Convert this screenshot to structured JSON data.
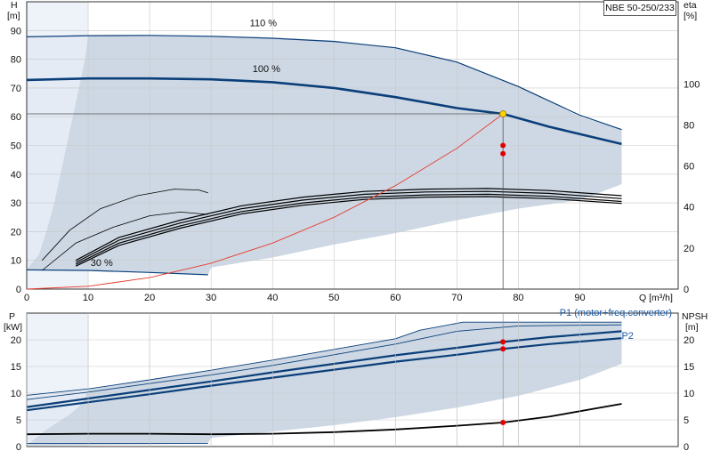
{
  "model": "NBE 50-250/233",
  "top_labels": {
    "h": "H",
    "h_unit": "[m]",
    "eta": "eta",
    "eta_unit": "[%]",
    "q": "Q [m³/h]"
  },
  "bottom_labels": {
    "p": "P",
    "p_unit": "[kW]",
    "npsh": "NPSH",
    "npsh_unit": "[m]"
  },
  "chart_data": [
    {
      "type": "line",
      "id": "head-efficiency",
      "xlabel": "Q [m³/h]",
      "ylabel": "H [m]",
      "y2label": "eta [%]",
      "xlim": [
        0,
        100
      ],
      "ylim": [
        0,
        100
      ],
      "y2lim": [
        0,
        140
      ],
      "x_ticks": [
        0,
        10,
        20,
        30,
        40,
        50,
        60,
        70,
        80,
        90
      ],
      "y_ticks": [
        0,
        10,
        20,
        30,
        40,
        50,
        60,
        70,
        80,
        90
      ],
      "y2_ticks": [
        0,
        20,
        40,
        60,
        80,
        100
      ],
      "grid": true,
      "annotations": [
        "110 %",
        "100 %",
        "30 %"
      ],
      "operating_point": {
        "q": 77.5,
        "h": 61,
        "eta_values": [
          70,
          66
        ]
      },
      "envelope": {
        "upper": [
          [
            0,
            88
          ],
          [
            10,
            88.4
          ],
          [
            20,
            88.5
          ],
          [
            30,
            88.2
          ],
          [
            40,
            87.5
          ],
          [
            50,
            86.5
          ],
          [
            60,
            84
          ],
          [
            70,
            79
          ],
          [
            80,
            70.5
          ],
          [
            90,
            60
          ],
          [
            96.8,
            55.5
          ]
        ],
        "lower": [
          [
            96.8,
            36.5
          ],
          [
            90,
            31
          ],
          [
            80,
            28
          ],
          [
            70,
            24
          ],
          [
            60,
            19.5
          ],
          [
            50,
            15.5
          ],
          [
            40,
            11
          ],
          [
            30,
            7.5
          ],
          [
            29.5,
            5
          ],
          [
            20,
            5.8
          ],
          [
            10,
            6.5
          ],
          [
            0,
            6.8
          ]
        ],
        "left_edge": [
          [
            10,
            88.4
          ],
          [
            9.5,
            80
          ],
          [
            8.5,
            70
          ],
          [
            7.5,
            60
          ],
          [
            6.5,
            50
          ],
          [
            5.5,
            40
          ],
          [
            4.5,
            30
          ],
          [
            3.2,
            20
          ],
          [
            2,
            12
          ],
          [
            0,
            6.8
          ]
        ]
      },
      "series": [
        {
          "kind": "head",
          "color": "#0b3f7a",
          "width": 2.6,
          "points": [
            [
              0,
              72.8
            ],
            [
              10,
              73.3
            ],
            [
              20,
              73.3
            ],
            [
              30,
              73
            ],
            [
              40,
              72
            ],
            [
              50,
              70
            ],
            [
              60,
              66.8
            ],
            [
              70,
              63
            ],
            [
              77.5,
              61
            ],
            [
              85,
              56.5
            ],
            [
              96.8,
              50.5
            ]
          ]
        },
        {
          "kind": "head",
          "color": "#0b3f7a",
          "width": 1.2,
          "points": [
            [
              0,
              87.8
            ],
            [
              10,
              88.2
            ],
            [
              20,
              88.3
            ],
            [
              30,
              88
            ],
            [
              40,
              87.3
            ],
            [
              50,
              86.2
            ],
            [
              60,
              84
            ],
            [
              70,
              79
            ],
            [
              80,
              70.5
            ],
            [
              90,
              60.5
            ],
            [
              96.8,
              55.5
            ]
          ]
        },
        {
          "kind": "head",
          "color": "#0b3f7a",
          "width": 1.2,
          "points": [
            [
              0,
              6.7
            ],
            [
              10,
              6.5
            ],
            [
              20,
              5.8
            ],
            [
              29.5,
              5
            ]
          ]
        },
        {
          "kind": "efficiency",
          "color": "#000000",
          "width": 1.2,
          "points": [
            [
              8,
              10
            ],
            [
              15,
              18
            ],
            [
              25,
              24
            ],
            [
              35,
              29
            ],
            [
              45,
              32
            ],
            [
              55,
              34
            ],
            [
              65,
              34.8
            ],
            [
              75,
              35
            ],
            [
              85,
              34.3
            ],
            [
              96.8,
              32.5
            ]
          ]
        },
        {
          "kind": "efficiency",
          "color": "#000000",
          "width": 1.2,
          "points": [
            [
              8,
              9.3
            ],
            [
              15,
              17
            ],
            [
              25,
              23
            ],
            [
              35,
              28
            ],
            [
              45,
              31
            ],
            [
              55,
              33
            ],
            [
              65,
              33.8
            ],
            [
              75,
              34
            ],
            [
              85,
              33.3
            ],
            [
              96.8,
              31.5
            ]
          ]
        },
        {
          "kind": "efficiency",
          "color": "#000000",
          "width": 1.2,
          "points": [
            [
              8,
              8.6
            ],
            [
              15,
              16
            ],
            [
              25,
              22
            ],
            [
              35,
              27
            ],
            [
              45,
              30
            ],
            [
              55,
              32
            ],
            [
              65,
              32.8
            ],
            [
              75,
              33
            ],
            [
              85,
              32.3
            ],
            [
              96.8,
              30.5
            ]
          ]
        },
        {
          "kind": "efficiency",
          "color": "#000000",
          "width": 1.2,
          "points": [
            [
              8,
              8
            ],
            [
              15,
              15.2
            ],
            [
              25,
              21.2
            ],
            [
              35,
              26.2
            ],
            [
              45,
              29.2
            ],
            [
              55,
              31.2
            ],
            [
              65,
              32
            ],
            [
              75,
              32.2
            ],
            [
              85,
              31.5
            ],
            [
              96.8,
              29.8
            ]
          ]
        },
        {
          "kind": "efficiency",
          "color": "#000000",
          "width": 0.8,
          "points": [
            [
              2.5,
              6.5
            ],
            [
              8,
              16
            ],
            [
              14,
              21.5
            ],
            [
              20,
              25.5
            ],
            [
              25,
              26.8
            ],
            [
              29.5,
              26
            ]
          ]
        },
        {
          "kind": "efficiency",
          "color": "#000000",
          "width": 0.8,
          "points": [
            [
              2.5,
              10
            ],
            [
              7,
              20.5
            ],
            [
              12,
              28
            ],
            [
              18,
              32.5
            ],
            [
              24,
              34.8
            ],
            [
              28,
              34.5
            ],
            [
              29.5,
              33.5
            ]
          ]
        },
        {
          "kind": "system",
          "color": "#e83a2c",
          "width": 0.9,
          "points": [
            [
              0,
              0
            ],
            [
              10,
              1
            ],
            [
              20,
              4
            ],
            [
              30,
              9
            ],
            [
              40,
              16
            ],
            [
              50,
              25
            ],
            [
              60,
              36
            ],
            [
              70,
              49
            ],
            [
              77.5,
              61
            ]
          ]
        }
      ]
    },
    {
      "type": "line",
      "id": "power-npsh",
      "ylabel": "P [kW]",
      "y2label": "NPSH [m]",
      "xlim": [
        0,
        100
      ],
      "ylim": [
        0,
        25
      ],
      "y_ticks": [
        0,
        5,
        10,
        15,
        20
      ],
      "y2_ticks": [
        0,
        5,
        10,
        15,
        20
      ],
      "grid": true,
      "legend": [
        "P1 (motor+freq.converter)",
        "P2"
      ],
      "operating_point": {
        "q": 77.5,
        "p1": 19.6,
        "p2": 18.3,
        "npsh": 4.5
      },
      "envelope": {
        "upper": [
          [
            0,
            9.6
          ],
          [
            10,
            10.8
          ],
          [
            20,
            12.5
          ],
          [
            30,
            14.3
          ],
          [
            40,
            16.2
          ],
          [
            50,
            18.2
          ],
          [
            60,
            20.2
          ],
          [
            64,
            21.8
          ],
          [
            71,
            23.3
          ],
          [
            80,
            23.3
          ],
          [
            96.8,
            23.3
          ]
        ],
        "lower": [
          [
            96.8,
            15.5
          ],
          [
            90,
            12.5
          ],
          [
            80,
            9.5
          ],
          [
            70,
            7.3
          ],
          [
            60,
            5.5
          ],
          [
            50,
            4
          ],
          [
            40,
            2.8
          ],
          [
            30,
            1.6
          ],
          [
            29.5,
            0.6
          ],
          [
            20,
            0.4
          ],
          [
            10,
            0.3
          ],
          [
            0,
            0.2
          ]
        ],
        "left_edge": [
          [
            10,
            10.8
          ],
          [
            9.5,
            9
          ],
          [
            8.5,
            7.5
          ],
          [
            7,
            6
          ],
          [
            5,
            4.5
          ],
          [
            3,
            3
          ],
          [
            0,
            0.2
          ]
        ]
      },
      "series": [
        {
          "name": "P1 (motor+freq.converter)",
          "color": "#0b3f7a",
          "width": 2.2,
          "points": [
            [
              0,
              7.4
            ],
            [
              10,
              9
            ],
            [
              20,
              10.6
            ],
            [
              30,
              12.2
            ],
            [
              40,
              13.9
            ],
            [
              50,
              15.5
            ],
            [
              60,
              17.1
            ],
            [
              70,
              18.5
            ],
            [
              77.5,
              19.6
            ],
            [
              85,
              20.5
            ],
            [
              96.8,
              21.6
            ]
          ]
        },
        {
          "name": "P2",
          "color": "#0b3f7a",
          "width": 2.2,
          "points": [
            [
              0,
              6.8
            ],
            [
              10,
              8.3
            ],
            [
              20,
              9.8
            ],
            [
              30,
              11.4
            ],
            [
              40,
              12.9
            ],
            [
              50,
              14.4
            ],
            [
              60,
              15.9
            ],
            [
              70,
              17.2
            ],
            [
              77.5,
              18.3
            ],
            [
              85,
              19.2
            ],
            [
              96.8,
              20.3
            ]
          ]
        },
        {
          "kind": "thin",
          "color": "#0b3f7a",
          "width": 0.9,
          "points": [
            [
              0,
              9.6
            ],
            [
              10,
              10.8
            ],
            [
              20,
              12.5
            ],
            [
              30,
              14.3
            ],
            [
              40,
              16.2
            ],
            [
              50,
              18.2
            ],
            [
              60,
              20.2
            ],
            [
              64,
              21.8
            ],
            [
              71,
              23.3
            ],
            [
              96.8,
              23.3
            ]
          ]
        },
        {
          "kind": "thin",
          "color": "#0b3f7a",
          "width": 0.9,
          "points": [
            [
              0,
              8.8
            ],
            [
              10,
              10.2
            ],
            [
              20,
              11.8
            ],
            [
              30,
              13.4
            ],
            [
              40,
              15.2
            ],
            [
              50,
              17.2
            ],
            [
              60,
              19.2
            ],
            [
              70,
              21.6
            ],
            [
              80,
              22.6
            ],
            [
              96.8,
              22.8
            ]
          ]
        },
        {
          "kind": "thin",
          "color": "#0b3f7a",
          "width": 0.9,
          "points": [
            [
              0,
              0.6
            ],
            [
              10,
              0.6
            ],
            [
              20,
              0.6
            ],
            [
              29.5,
              0.6
            ]
          ]
        },
        {
          "name": "NPSH",
          "color": "#000000",
          "width": 1.8,
          "points": [
            [
              0,
              2.3
            ],
            [
              10,
              2.4
            ],
            [
              20,
              2.4
            ],
            [
              30,
              2.3
            ],
            [
              40,
              2.4
            ],
            [
              50,
              2.7
            ],
            [
              60,
              3.2
            ],
            [
              70,
              3.9
            ],
            [
              77.5,
              4.5
            ],
            [
              85,
              5.6
            ],
            [
              96.8,
              8
            ]
          ]
        }
      ]
    }
  ]
}
